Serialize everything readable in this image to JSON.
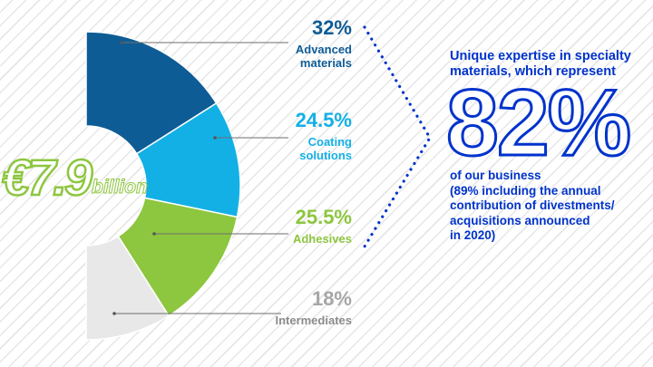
{
  "chart_data": {
    "type": "pie",
    "total": {
      "amount": "€7.9",
      "unit": "billion"
    },
    "slices": [
      {
        "label_lines": [
          "Advanced",
          "materials"
        ],
        "value": 32,
        "value_label": "32%",
        "color": "#0e5c96"
      },
      {
        "label_lines": [
          "Coating",
          "solutions"
        ],
        "value": 24.5,
        "value_label": "24.5%",
        "color": "#13b0e6"
      },
      {
        "label_lines": [
          "Adhesives"
        ],
        "value": 25.5,
        "value_label": "25.5%",
        "color": "#8dc63f"
      },
      {
        "label_lines": [
          "Intermediates"
        ],
        "value": 18,
        "value_label": "18%",
        "color": "#e8e8e8"
      }
    ]
  },
  "text_colors": {
    "slice_values": [
      "#0e5c96",
      "#13b0e6",
      "#8dc63f",
      "#a6a6a6"
    ],
    "slice_names": [
      "#0e5c96",
      "#13b0e6",
      "#8dc63f",
      "#8c8c8c"
    ],
    "highlight": "#0033cc"
  },
  "highlight": {
    "headline_lines": [
      "Unique expertise in specialty",
      "materials, which represent"
    ],
    "percent": "82%",
    "body_lines": [
      "of our business",
      "(89% including the annual",
      "contribution of divestments/",
      "acquisitions announced",
      "in 2020)"
    ]
  }
}
